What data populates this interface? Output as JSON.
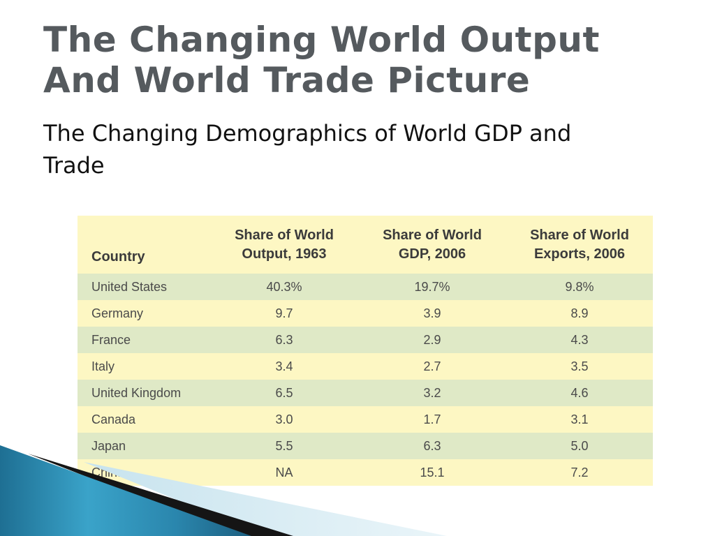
{
  "slide": {
    "title_line1": "The Changing World Output",
    "title_line2": "And World Trade Picture",
    "subtitle_line1": "The Changing Demographics of World GDP and",
    "subtitle_line2": "Trade"
  },
  "table": {
    "headers": {
      "country": "Country",
      "col1_line1": "Share of World",
      "col1_line2": "Output, 1963",
      "col2_line1": "Share of World",
      "col2_line2": "GDP, 2006",
      "col3_line1": "Share of World",
      "col3_line2": "Exports, 2006"
    },
    "rows": [
      {
        "country": "United States",
        "output_1963": "40.3%",
        "gdp_2006": "19.7%",
        "exports_2006": "9.8%"
      },
      {
        "country": "Germany",
        "output_1963": "9.7",
        "gdp_2006": "3.9",
        "exports_2006": "8.9"
      },
      {
        "country": "France",
        "output_1963": "6.3",
        "gdp_2006": "2.9",
        "exports_2006": "4.3"
      },
      {
        "country": "Italy",
        "output_1963": "3.4",
        "gdp_2006": "2.7",
        "exports_2006": "3.5"
      },
      {
        "country": "United Kingdom",
        "output_1963": "6.5",
        "gdp_2006": "3.2",
        "exports_2006": "4.6"
      },
      {
        "country": "Canada",
        "output_1963": "3.0",
        "gdp_2006": "1.7",
        "exports_2006": "3.1"
      },
      {
        "country": "Japan",
        "output_1963": "5.5",
        "gdp_2006": "6.3",
        "exports_2006": "5.0"
      },
      {
        "country": "China",
        "output_1963": "NA",
        "gdp_2006": "15.1",
        "exports_2006": "7.2"
      }
    ]
  },
  "colors": {
    "title": "#555a5e",
    "row_green": "#dfe9c6",
    "row_yellow": "#fdf7c3",
    "accent_blue": "#2f8fb4"
  }
}
